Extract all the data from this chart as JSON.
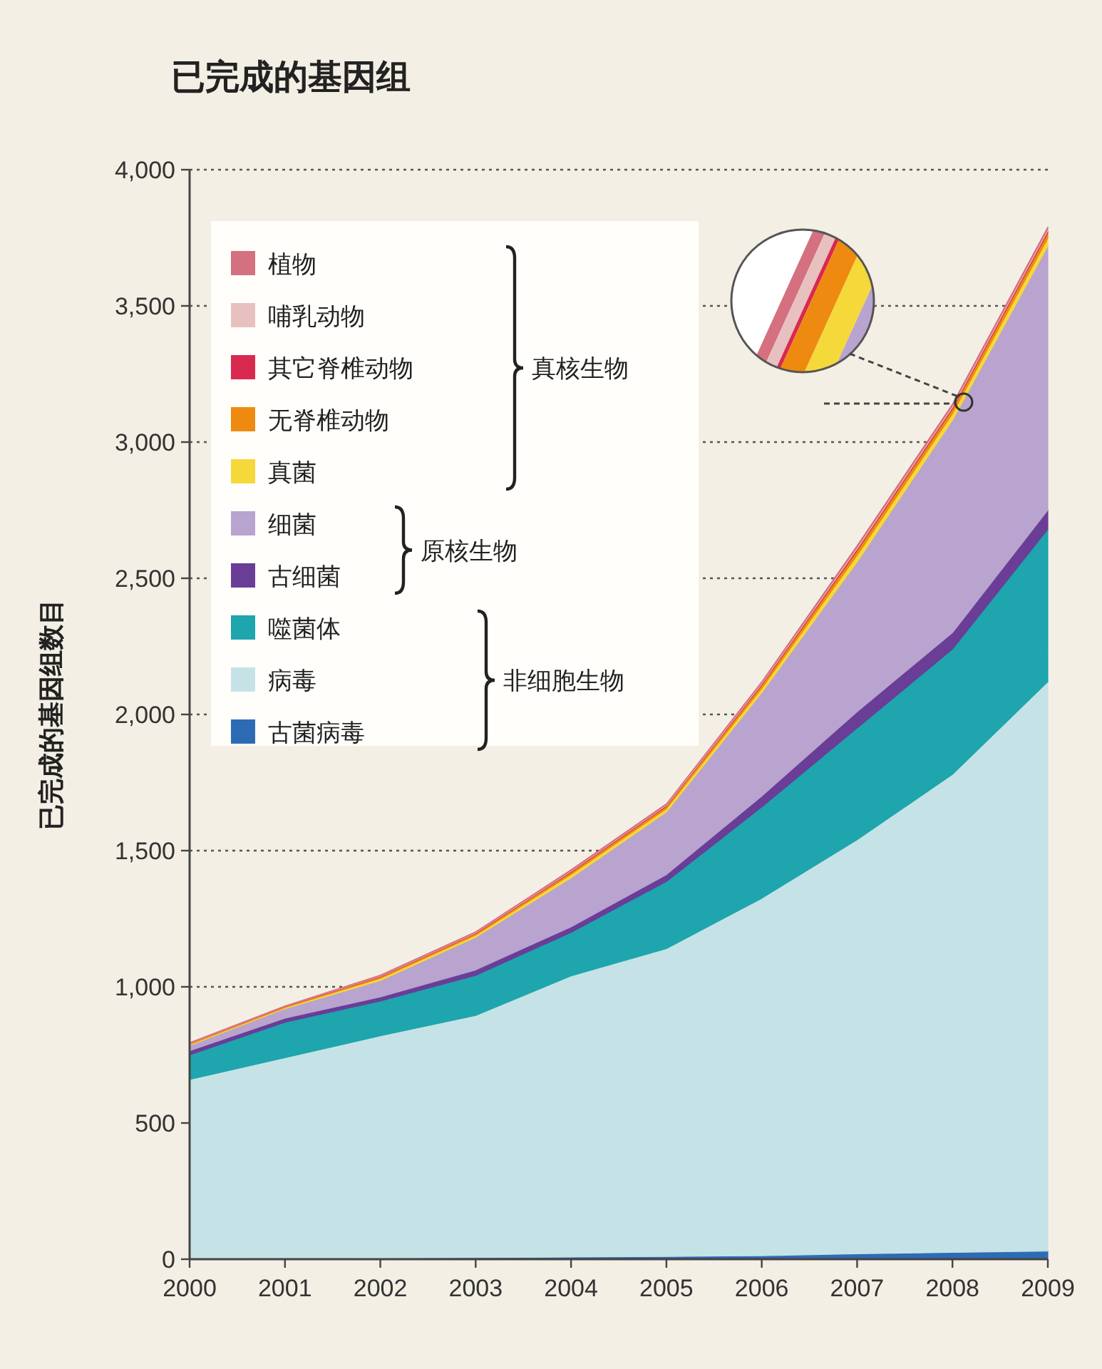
{
  "chart_data": {
    "type": "area",
    "stacked": true,
    "title": "已完成的基因组",
    "ylabel": "已完成的基因组数目",
    "x": [
      2000,
      2001,
      2002,
      2003,
      2004,
      2005,
      2006,
      2007,
      2008,
      2009
    ],
    "xlim": [
      2000,
      2009
    ],
    "xticks": [
      2000,
      2001,
      2002,
      2003,
      2004,
      2005,
      2006,
      2007,
      2008,
      2009
    ],
    "ylim": [
      0,
      4000
    ],
    "yticks": [
      0,
      500,
      {
        "value": 1000,
        "label": "1,000"
      },
      {
        "value": 1500,
        "label": "1,500"
      },
      {
        "value": 2000,
        "label": "2,000"
      },
      {
        "value": 2500,
        "label": "2,500"
      },
      {
        "value": 3000,
        "label": "3,000"
      },
      {
        "value": 3500,
        "label": "3,500"
      },
      {
        "value": 4000,
        "label": "4,000"
      }
    ],
    "grid": "y",
    "legend": "top left",
    "series": [
      {
        "name": "古菌病毒",
        "color": "#2e6bb5",
        "values": [
          2,
          3,
          4,
          6,
          8,
          10,
          13,
          20,
          25,
          30
        ]
      },
      {
        "name": "病毒",
        "color": "#c5e3e6",
        "values": [
          658,
          737,
          816,
          889,
          1032,
          1130,
          1312,
          1520,
          1755,
          2090
        ]
      },
      {
        "name": "噬菌体",
        "color": "#1ea5ad",
        "values": [
          90,
          130,
          128,
          147,
          160,
          247,
          335,
          410,
          460,
          560
        ]
      },
      {
        "name": "古细菌",
        "color": "#6a3d97",
        "values": [
          15,
          15,
          15,
          20,
          20,
          25,
          40,
          60,
          60,
          70
        ]
      },
      {
        "name": "细菌",
        "color": "#b9a3cf",
        "values": [
          20,
          35,
          60,
          120,
          180,
          230,
          380,
          550,
          780,
          970
        ]
      },
      {
        "name": "真菌",
        "color": "#f5d83a",
        "values": [
          4,
          4,
          8,
          8,
          12,
          12,
          16,
          24,
          24,
          28
        ]
      },
      {
        "name": "无脊椎动物",
        "color": "#ee8a10",
        "values": [
          3,
          3,
          6,
          6,
          9,
          9,
          12,
          18,
          18,
          21
        ]
      },
      {
        "name": "其它脊椎动物",
        "color": "#d9294f",
        "values": [
          1,
          1,
          2,
          2,
          3,
          3,
          4,
          6,
          6,
          7
        ]
      },
      {
        "name": "哺乳动物",
        "color": "#e8c0c0",
        "values": [
          1,
          1,
          2,
          2,
          3,
          3,
          4,
          6,
          6,
          7
        ]
      },
      {
        "name": "植物",
        "color": "#d4707f",
        "values": [
          1,
          1,
          2,
          2,
          3,
          3,
          4,
          6,
          6,
          7
        ]
      }
    ],
    "annotations": [
      "真核生物",
      "原核生物",
      "非细胞生物"
    ]
  }
}
